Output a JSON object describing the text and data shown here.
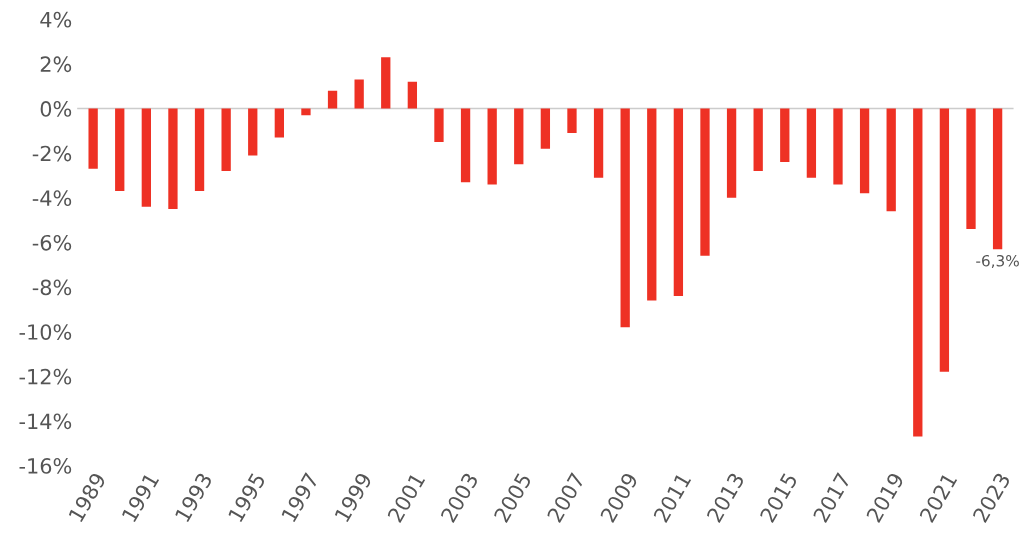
{
  "chart_data": {
    "type": "bar",
    "categories": [
      "1989",
      null,
      "1991",
      null,
      "1993",
      null,
      "1995",
      null,
      "1997",
      null,
      "1999",
      null,
      "2001",
      null,
      "2003",
      null,
      "2005",
      null,
      "2007",
      null,
      "2009",
      null,
      "2011",
      null,
      "2013",
      null,
      "2015",
      null,
      "2017",
      null,
      "2019",
      null,
      "2021",
      null,
      "2023"
    ],
    "values": [
      -2.7,
      -3.7,
      -4.4,
      -4.5,
      -3.7,
      -2.8,
      -2.1,
      -1.3,
      -0.3,
      0.8,
      1.3,
      2.3,
      1.2,
      -1.5,
      -3.3,
      -3.4,
      -2.5,
      -1.8,
      -1.1,
      -3.1,
      -9.8,
      -8.6,
      -8.4,
      -6.6,
      -4.0,
      -2.8,
      -2.4,
      -3.1,
      -3.4,
      -3.8,
      -4.6,
      -14.7,
      -11.8,
      -5.4,
      -6.3
    ],
    "value_labels": [
      null,
      null,
      null,
      null,
      null,
      null,
      null,
      null,
      null,
      null,
      null,
      null,
      null,
      null,
      null,
      null,
      null,
      null,
      null,
      null,
      null,
      null,
      null,
      null,
      null,
      null,
      null,
      null,
      null,
      null,
      null,
      null,
      null,
      null,
      "-6,3%"
    ],
    "color": "#ee3124",
    "ylim": [
      -16,
      4
    ],
    "ref_lines": [
      {
        "axis": "y",
        "value": 0,
        "color": "#cccccc"
      }
    ],
    "yticks": [
      {
        "value": 4,
        "label": "4%"
      },
      {
        "value": 2,
        "label": "2%"
      },
      {
        "value": 0,
        "label": "0%"
      },
      {
        "value": -2,
        "label": "-2%"
      },
      {
        "value": -4,
        "label": "-4%"
      },
      {
        "value": -6,
        "label": "-6%"
      },
      {
        "value": -8,
        "label": "-8%"
      },
      {
        "value": -10,
        "label": "-10%"
      },
      {
        "value": -12,
        "label": "-12%"
      },
      {
        "value": -14,
        "label": "-14%"
      },
      {
        "value": -16,
        "label": "-16%"
      }
    ],
    "grid": false,
    "legend": false
  }
}
